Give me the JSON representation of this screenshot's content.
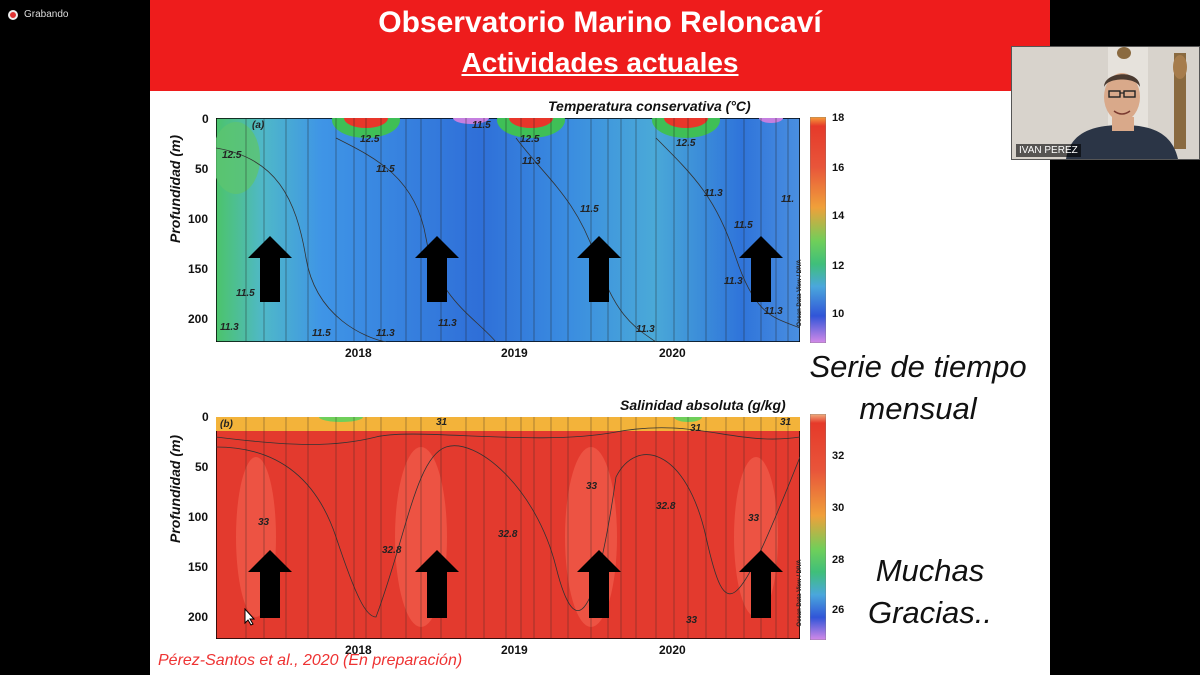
{
  "recording": {
    "label": "Grabando"
  },
  "slide": {
    "title": "Observatorio Marino Reloncaví",
    "subtitle": "Actividades actuales",
    "citation": "Pérez-Santos et al., 2020 (En preparación)",
    "text_1_line1": "Serie de tiempo",
    "text_1_line2": "mensual",
    "text_2_line1": "Muchas",
    "text_2_line2": "Gracias.."
  },
  "participant": {
    "name": "IVAN PEREZ"
  },
  "chart_data": [
    {
      "type": "heatmap",
      "panel": "(a)",
      "title": "Temperatura conservativa (°C)",
      "ylabel": "Profundidad (m)",
      "y_ticks": [
        "0",
        "50",
        "100",
        "150",
        "200"
      ],
      "x_ticks": [
        "2018",
        "2019",
        "2020"
      ],
      "colorbar_ticks": [
        "18",
        "16",
        "14",
        "12",
        "10"
      ],
      "contour_labels": [
        "12.5",
        "12.5",
        "12.5",
        "12.5",
        "11.5",
        "11.5",
        "11.5",
        "11.5",
        "11.5",
        "11.5",
        "11.3",
        "11.3",
        "11.3",
        "11.3",
        "11.3",
        "11.3",
        "11.3",
        "11.3",
        "11.",
        "11."
      ],
      "credit": "Ocean Data View / DIVA",
      "colors": {
        "deep": "#3c8fe0",
        "core": "#2f6fd8",
        "warm": "#e8362a",
        "green": "#3fbf56"
      }
    },
    {
      "type": "heatmap",
      "panel": "(b)",
      "title": "Salinidad absoluta (g/kg)",
      "ylabel": "Profundidad (m)",
      "y_ticks": [
        "0",
        "50",
        "100",
        "150",
        "200"
      ],
      "x_ticks": [
        "2018",
        "2019",
        "2020"
      ],
      "colorbar_ticks": [
        "32",
        "30",
        "28",
        "26"
      ],
      "contour_labels": [
        "31",
        "31",
        "31",
        "33",
        "33",
        "33",
        "33",
        "32.8",
        "32.8",
        "32.8"
      ],
      "credit": "Ocean Data View / DIVA",
      "colors": {
        "main": "#e33a2e",
        "light": "#ef5a48",
        "surface": "#f3b33a"
      }
    }
  ]
}
